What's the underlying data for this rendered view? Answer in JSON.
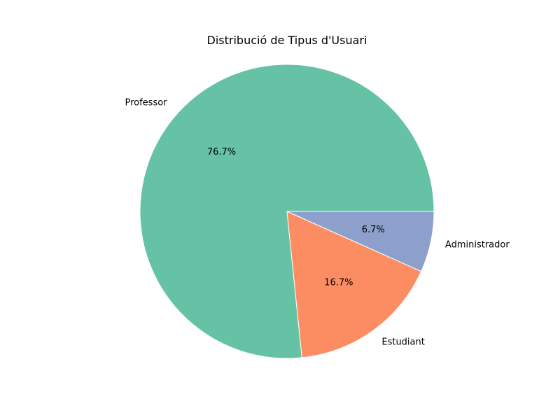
{
  "chart_data": {
    "type": "pie",
    "title": "Distribució de Tipus d'Usuari",
    "categories": [
      "Professor",
      "Estudiant",
      "Administrador"
    ],
    "values": [
      76.7,
      16.7,
      6.7
    ],
    "percent_labels": [
      "76.7%",
      "16.7%",
      "6.7%"
    ],
    "colors": [
      "#66c2a5",
      "#fc8d62",
      "#8da0cb"
    ],
    "start_angle_deg": 0,
    "direction": "counterclockwise",
    "legend": "none"
  }
}
